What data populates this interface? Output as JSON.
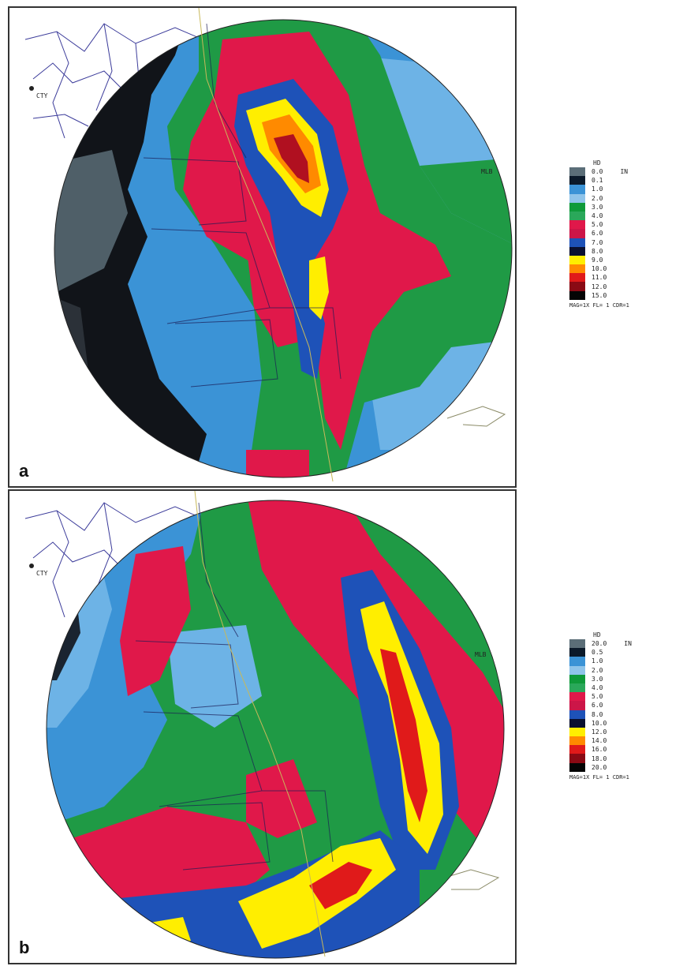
{
  "panels": [
    {
      "letter": "a",
      "site_labels": [
        "CTY",
        "MLB"
      ],
      "legend": {
        "title": "HD",
        "unit": "IN",
        "footer": "MAG=1X FL= 1 CDR=1",
        "items": [
          {
            "label": "0.0",
            "color": "#5b6e78"
          },
          {
            "label": "0.1",
            "color": "#0b1a2a"
          },
          {
            "label": "1.0",
            "color": "#3b93d6"
          },
          {
            "label": "2.0",
            "color": "#8fc4ea"
          },
          {
            "label": "3.0",
            "color": "#0f9a3a"
          },
          {
            "label": "4.0",
            "color": "#2aa85a"
          },
          {
            "label": "5.0",
            "color": "#e0184a"
          },
          {
            "label": "6.0",
            "color": "#cc1648"
          },
          {
            "label": "7.0",
            "color": "#1e52b8"
          },
          {
            "label": "8.0",
            "color": "#0a1030"
          },
          {
            "label": "9.0",
            "color": "#ffee00"
          },
          {
            "label": "10.0",
            "color": "#ff8a00"
          },
          {
            "label": "11.0",
            "color": "#e01a1a"
          },
          {
            "label": "12.0",
            "color": "#8a0a14"
          },
          {
            "label": "15.0",
            "color": "#050505"
          }
        ]
      }
    },
    {
      "letter": "b",
      "site_labels": [
        "CTY",
        "MLB"
      ],
      "legend": {
        "title": "HD",
        "unit": "IN",
        "footer": "MAG=1X FL= 1 CDR=1",
        "items": [
          {
            "label": "20.0",
            "color": "#5b6e78"
          },
          {
            "label": "0.5",
            "color": "#0b1a2a"
          },
          {
            "label": "1.0",
            "color": "#3b93d6"
          },
          {
            "label": "2.0",
            "color": "#8fc4ea"
          },
          {
            "label": "3.0",
            "color": "#0f9a3a"
          },
          {
            "label": "4.0",
            "color": "#2aa85a"
          },
          {
            "label": "5.0",
            "color": "#e0184a"
          },
          {
            "label": "6.0",
            "color": "#cc1648"
          },
          {
            "label": "8.0",
            "color": "#1e52b8"
          },
          {
            "label": "10.0",
            "color": "#0a1030"
          },
          {
            "label": "12.0",
            "color": "#ffee00"
          },
          {
            "label": "14.0",
            "color": "#ff8a00"
          },
          {
            "label": "16.0",
            "color": "#e01a1a"
          },
          {
            "label": "18.0",
            "color": "#8a0a14"
          },
          {
            "label": "20.0",
            "color": "#050505"
          }
        ]
      }
    }
  ]
}
